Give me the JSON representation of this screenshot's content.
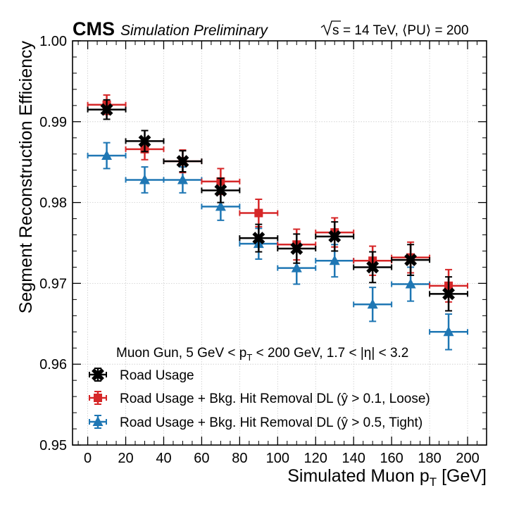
{
  "header": {
    "cms": "CMS",
    "label": "Simulation Preliminary",
    "sqrt_s": "s",
    "energy": "= 14 TeV, ⟨PU⟩ = 200"
  },
  "chart_data": {
    "type": "scatter",
    "title": "",
    "xlabel_main": "Simulated Muon p",
    "xlabel_sub": "T",
    "xlabel_unit": " [GeV]",
    "ylabel": "Segment Reconstruction Efficiency",
    "xlim": [
      -8,
      210
    ],
    "ylim": [
      0.95,
      1.0
    ],
    "xticks": [
      0,
      20,
      40,
      60,
      80,
      100,
      120,
      140,
      160,
      180,
      200
    ],
    "yticks": [
      0.95,
      0.96,
      0.97,
      0.98,
      0.99,
      1.0
    ],
    "ytick_labels": [
      "0.95",
      "0.96",
      "0.97",
      "0.98",
      "0.99",
      "1.00"
    ],
    "grid": true,
    "legend_position": "bottom-left",
    "annotation": {
      "pre": "Muon Gun, 5 GeV < p",
      "sub1": "T",
      "mid": " < 200 GeV, 1.7 < |η| < 3.2"
    },
    "series": [
      {
        "name": "Road Usage",
        "color": "#000000",
        "marker": "x",
        "x": [
          10,
          30,
          50,
          70,
          90,
          110,
          130,
          150,
          170,
          190
        ],
        "y": [
          0.9915,
          0.9876,
          0.9851,
          0.9815,
          0.9756,
          0.9743,
          0.9758,
          0.972,
          0.9729,
          0.9687
        ],
        "xerr": 10,
        "yerr": [
          0.0012,
          0.0013,
          0.0013,
          0.0015,
          0.0017,
          0.0018,
          0.0018,
          0.0019,
          0.0019,
          0.0021
        ]
      },
      {
        "name": "Road Usage + Bkg. Hit Removal DL (ŷ > 0.1, Loose)",
        "color": "#d62728",
        "marker": "square",
        "x": [
          10,
          30,
          50,
          70,
          90,
          110,
          130,
          150,
          170,
          190
        ],
        "y": [
          0.9921,
          0.9866,
          0.9851,
          0.9826,
          0.9787,
          0.9748,
          0.9763,
          0.9728,
          0.9732,
          0.9697
        ],
        "xerr": 10,
        "yerr": [
          0.0012,
          0.0013,
          0.0014,
          0.0016,
          0.0017,
          0.0019,
          0.0018,
          0.0018,
          0.0019,
          0.002
        ]
      },
      {
        "name": "Road Usage + Bkg. Hit Removal DL (ŷ > 0.5, Tight)",
        "color": "#1f77b4",
        "marker": "triangle",
        "x": [
          10,
          30,
          50,
          70,
          90,
          110,
          130,
          150,
          170,
          190
        ],
        "y": [
          0.9858,
          0.9828,
          0.9828,
          0.9795,
          0.9749,
          0.9719,
          0.9728,
          0.9674,
          0.9699,
          0.964
        ],
        "xerr": 10,
        "yerr": [
          0.0016,
          0.0016,
          0.0016,
          0.0017,
          0.0019,
          0.002,
          0.002,
          0.0021,
          0.0021,
          0.0022
        ]
      }
    ]
  }
}
